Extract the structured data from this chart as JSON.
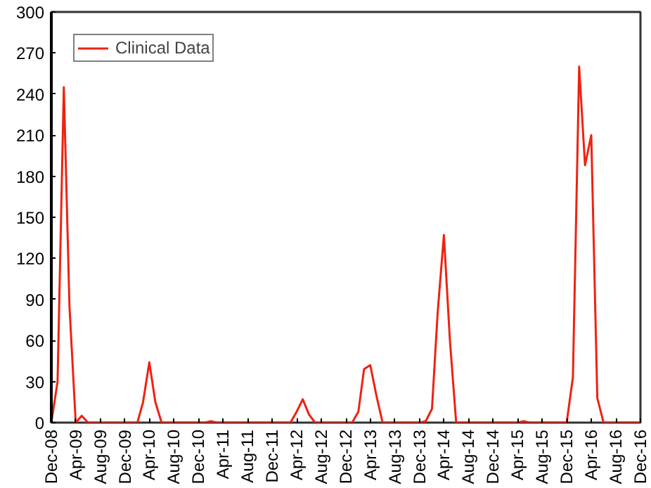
{
  "chart_data": {
    "type": "line",
    "legend": "top left",
    "grid": false,
    "marker": "none",
    "line_style": "solid",
    "ylim": [
      0,
      300
    ],
    "yticks": [
      0,
      30,
      60,
      90,
      120,
      150,
      180,
      210,
      240,
      270,
      300
    ],
    "xlim": [
      "2008-12",
      "2016-12"
    ],
    "xticks": [
      {
        "value": "2008-12",
        "label": "Dec-08"
      },
      {
        "value": "2009-04",
        "label": "Apr-09"
      },
      {
        "value": "2009-08",
        "label": "Aug-09"
      },
      {
        "value": "2009-12",
        "label": "Dec-09"
      },
      {
        "value": "2010-04",
        "label": "Apr-10"
      },
      {
        "value": "2010-08",
        "label": "Aug-10"
      },
      {
        "value": "2010-12",
        "label": "Dec-10"
      },
      {
        "value": "2011-04",
        "label": "Apr-11"
      },
      {
        "value": "2011-08",
        "label": "Aug-11"
      },
      {
        "value": "2011-12",
        "label": "Dec-11"
      },
      {
        "value": "2012-04",
        "label": "Apr-12"
      },
      {
        "value": "2012-08",
        "label": "Aug-12"
      },
      {
        "value": "2012-12",
        "label": "Dec-12"
      },
      {
        "value": "2013-04",
        "label": "Apr-13"
      },
      {
        "value": "2013-08",
        "label": "Aug-13"
      },
      {
        "value": "2013-12",
        "label": "Dec-13"
      },
      {
        "value": "2014-04",
        "label": "Apr-14"
      },
      {
        "value": "2014-08",
        "label": "Aug-14"
      },
      {
        "value": "2014-12",
        "label": "Dec-14"
      },
      {
        "value": "2015-04",
        "label": "Apr-15"
      },
      {
        "value": "2015-08",
        "label": "Aug-15"
      },
      {
        "value": "2015-12",
        "label": "Dec-15"
      },
      {
        "value": "2016-04",
        "label": "Apr-16"
      },
      {
        "value": "2016-08",
        "label": "Aug-16"
      },
      {
        "value": "2016-12",
        "label": "Dec-16"
      }
    ],
    "x": [
      "2008-12",
      "2009-01",
      "2009-02",
      "2009-03",
      "2009-04",
      "2009-05",
      "2009-06",
      "2009-07",
      "2009-08",
      "2009-09",
      "2009-10",
      "2009-11",
      "2009-12",
      "2010-01",
      "2010-02",
      "2010-03",
      "2010-04",
      "2010-05",
      "2010-06",
      "2010-07",
      "2010-08",
      "2010-09",
      "2010-10",
      "2010-11",
      "2010-12",
      "2011-01",
      "2011-02",
      "2011-03",
      "2011-04",
      "2011-05",
      "2011-06",
      "2011-07",
      "2011-08",
      "2011-09",
      "2011-10",
      "2011-11",
      "2011-12",
      "2012-01",
      "2012-02",
      "2012-03",
      "2012-04",
      "2012-05",
      "2012-06",
      "2012-07",
      "2012-08",
      "2012-09",
      "2012-10",
      "2012-11",
      "2012-12",
      "2013-01",
      "2013-02",
      "2013-03",
      "2013-04",
      "2013-05",
      "2013-06",
      "2013-07",
      "2013-08",
      "2013-09",
      "2013-10",
      "2013-11",
      "2013-12",
      "2014-01",
      "2014-02",
      "2014-03",
      "2014-04",
      "2014-05",
      "2014-06",
      "2014-07",
      "2014-08",
      "2014-09",
      "2014-10",
      "2014-11",
      "2014-12",
      "2015-01",
      "2015-02",
      "2015-03",
      "2015-04",
      "2015-05",
      "2015-06",
      "2015-07",
      "2015-08",
      "2015-09",
      "2015-10",
      "2015-11",
      "2015-12",
      "2016-01",
      "2016-02",
      "2016-03",
      "2016-04",
      "2016-05",
      "2016-06",
      "2016-07",
      "2016-08",
      "2016-09",
      "2016-10",
      "2016-11",
      "2016-12"
    ],
    "series": [
      {
        "name": "Clinical Data",
        "color": "#ee2211",
        "values": [
          0,
          30,
          245,
          85,
          0,
          5,
          0,
          0,
          0,
          0,
          0,
          0,
          0,
          0,
          0,
          15,
          44,
          15,
          0,
          0,
          0,
          0,
          0,
          0,
          0,
          0,
          1,
          0,
          0,
          0,
          0,
          0,
          0,
          0,
          0,
          0,
          0,
          0,
          0,
          0,
          8,
          17,
          6,
          0,
          0,
          0,
          0,
          0,
          0,
          0,
          8,
          39,
          42,
          20,
          0,
          0,
          0,
          0,
          0,
          0,
          0,
          1,
          10,
          80,
          137,
          60,
          0,
          0,
          0,
          0,
          0,
          0,
          0,
          0,
          0,
          0,
          0,
          1,
          0,
          0,
          0,
          0,
          0,
          0,
          0,
          33,
          260,
          188,
          210,
          18,
          0,
          0,
          0,
          0,
          0,
          0,
          0
        ]
      }
    ]
  }
}
